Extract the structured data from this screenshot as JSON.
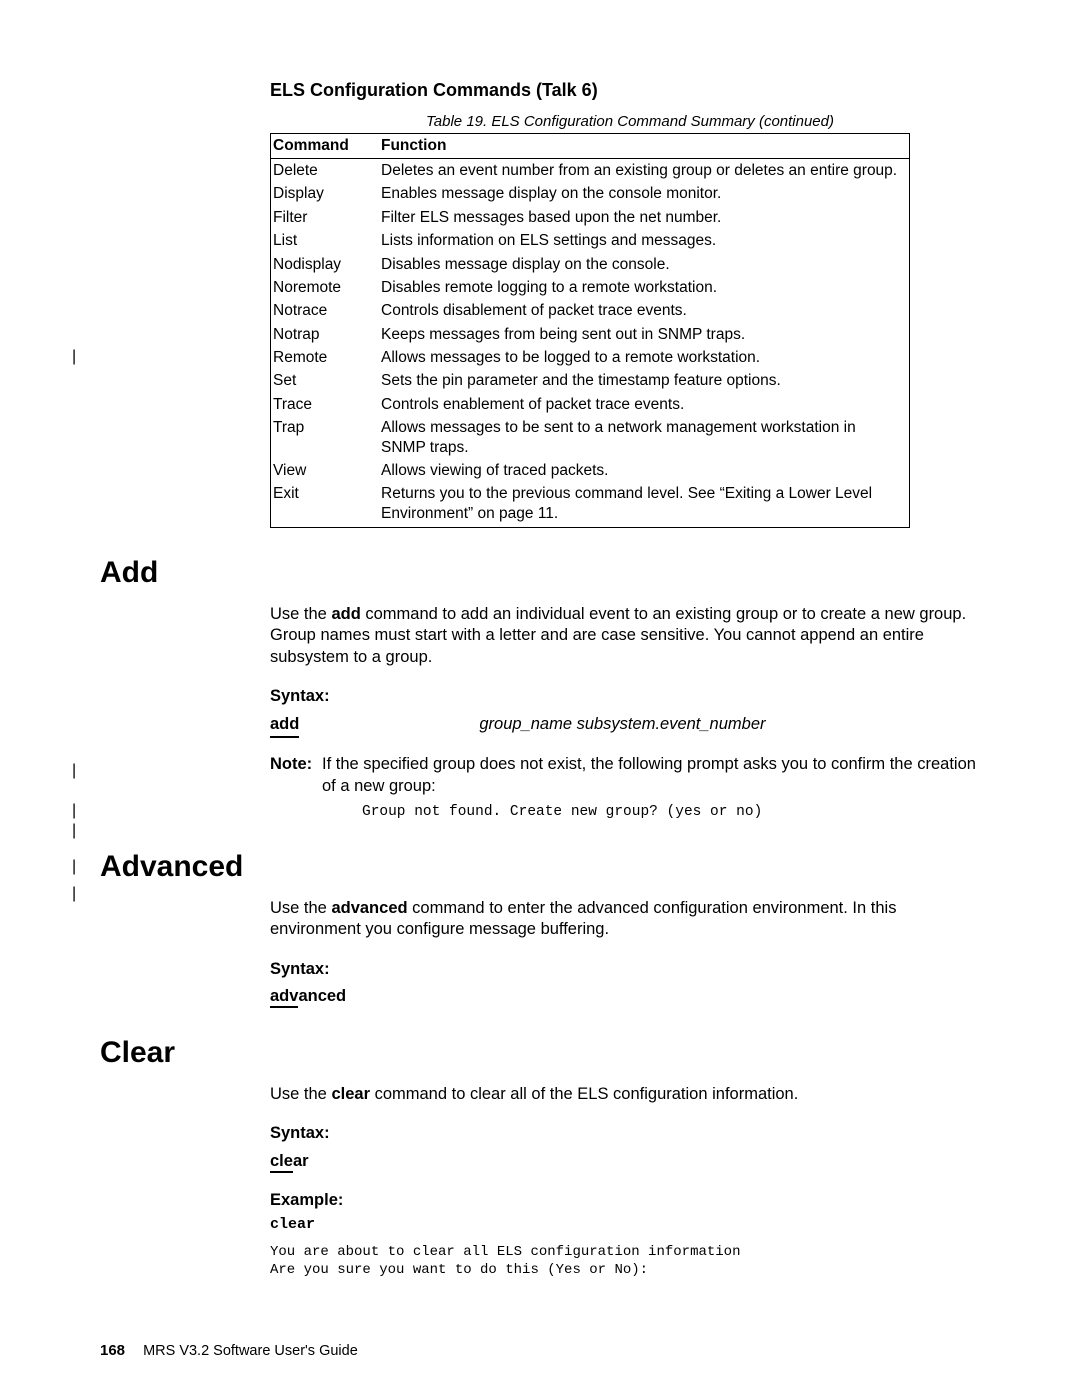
{
  "running_head": "ELS Configuration Commands (Talk 6)",
  "table": {
    "caption": "Table 19. ELS Configuration Command Summary  (continued)",
    "head_cmd": "Command",
    "head_fn": "Function",
    "rows": [
      {
        "cmd": "Delete",
        "fn": "Deletes an event number from an existing group or deletes an entire group."
      },
      {
        "cmd": "Display",
        "fn": "Enables message display on the console monitor."
      },
      {
        "cmd": "Filter",
        "fn": "Filter ELS messages based upon the net number."
      },
      {
        "cmd": "List",
        "fn": "Lists information on ELS settings and messages."
      },
      {
        "cmd": "Nodisplay",
        "fn": "Disables message display on the console."
      },
      {
        "cmd": "Noremote",
        "fn": "Disables remote logging to a remote workstation."
      },
      {
        "cmd": "Notrace",
        "fn": "Controls disablement of packet trace events."
      },
      {
        "cmd": "Notrap",
        "fn": "Keeps messages from being sent out in SNMP traps."
      },
      {
        "cmd": "Remote",
        "fn": "Allows messages to be logged to a remote workstation."
      },
      {
        "cmd": "Set",
        "fn": "Sets the pin parameter and the timestamp feature options."
      },
      {
        "cmd": "Trace",
        "fn": "Controls enablement of packet trace events."
      },
      {
        "cmd": "Trap",
        "fn": "Allows messages to be sent to a network management workstation in SNMP traps."
      },
      {
        "cmd": "View",
        "fn": "Allows viewing of traced packets."
      },
      {
        "cmd": "Exit",
        "fn": "Returns you to the previous command level. See “Exiting a Lower Level Environment” on page 11."
      }
    ]
  },
  "add": {
    "heading": "Add",
    "desc_pre": "Use the ",
    "desc_bold": "add",
    "desc_post": " command to add an individual event to an existing group or to create a new group. Group names must start with a letter and are case sensitive. You cannot append an entire subsystem to a group.",
    "syntax_label": "Syntax:",
    "syntax_cmd": "add",
    "syntax_args": "group_name subsystem.event_number",
    "note_label": "Note:",
    "note_body": "If the specified group does not exist, the following prompt asks you to confirm the creation of a new group:",
    "note_mono": "Group not found. Create new group? (yes or no)"
  },
  "advanced": {
    "heading": "Advanced",
    "desc_pre": "Use the ",
    "desc_bold": "advanced",
    "desc_post": " command to enter the advanced configuration environment. In this environment you configure message buffering.",
    "syntax_label": "Syntax:",
    "syntax_cmd_ul": "adv",
    "syntax_cmd_rest": "anced"
  },
  "clear": {
    "heading": "Clear",
    "desc_pre": "Use the ",
    "desc_bold": "clear",
    "desc_post": " command to clear all of the ELS configuration information.",
    "syntax_label": "Syntax:",
    "syntax_cmd_ul": "cle",
    "syntax_cmd_rest": "ar",
    "example_label": "Example:",
    "example_cmd": "clear",
    "example_out": "You are about to clear all ELS configuration information\nAre you sure you want to do this (Yes or No):"
  },
  "footer": {
    "page": "168",
    "title": "MRS V3.2 Software User's Guide"
  }
}
